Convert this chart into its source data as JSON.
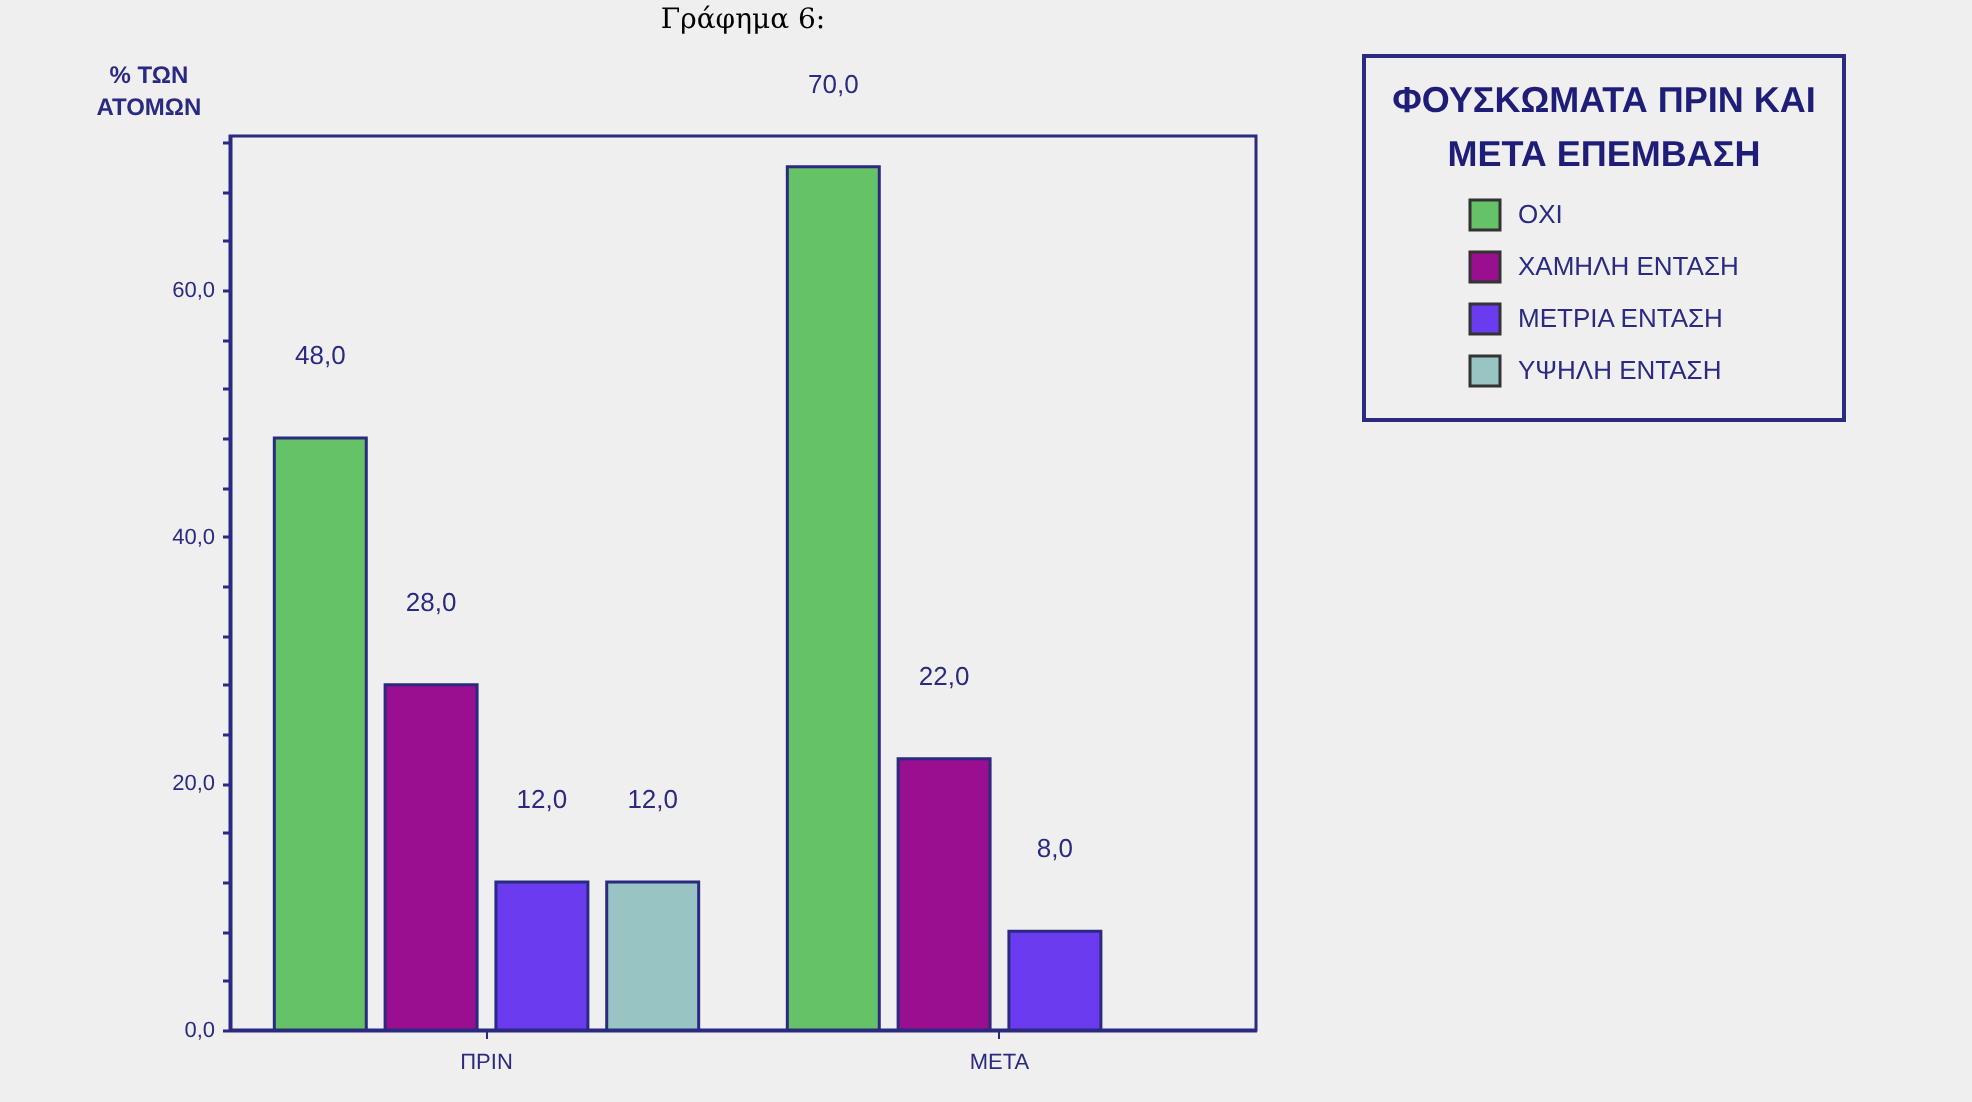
{
  "chart_data": {
    "type": "bar",
    "title": "Γράφημα 6:",
    "ylabel": "% ΤΩΝ ΑΤΟΜΩΝ",
    "legend_title": "ΦΟΥΣΚΩΜΑΤΑ ΠΡΙΝ ΚΑΙ ΜΕΤΑ ΕΠΕΜΒΑΣΗ",
    "categories": [
      "ΠΡΙΝ",
      "ΜΕΤΑ"
    ],
    "series": [
      {
        "name": "ΟΧΙ",
        "color": "#66c266",
        "values": [
          48,
          70
        ],
        "value_labels": [
          "48,0",
          "70,0"
        ]
      },
      {
        "name": "ΧΑΜΗΛΗ ΕΝΤΑΣΗ",
        "color": "#990f8f",
        "values": [
          28,
          22
        ],
        "value_labels": [
          "28,0",
          "22,0"
        ]
      },
      {
        "name": "ΜΕΤΡΙΑ ΕΝΤΑΣΗ",
        "color": "#6a3bef",
        "values": [
          12,
          8
        ],
        "value_labels": [
          "12,0",
          "8,0"
        ]
      },
      {
        "name": "ΥΨΗΛΗ ΕΝΤΑΣΗ",
        "color": "#99c4c4",
        "values": [
          12,
          null
        ],
        "value_labels": [
          "12,0",
          null
        ]
      }
    ],
    "ylim": [
      0,
      72.5
    ],
    "yticks": [
      {
        "value": 0,
        "label": "0,0"
      },
      {
        "value": 4,
        "label": null
      },
      {
        "value": 8,
        "label": null
      },
      {
        "value": 12,
        "label": null
      },
      {
        "value": 16,
        "label": null
      },
      {
        "value": 20,
        "label": "20,0"
      },
      {
        "value": 24,
        "label": null
      },
      {
        "value": 28,
        "label": null
      },
      {
        "value": 32,
        "label": null
      },
      {
        "value": 36,
        "label": null
      },
      {
        "value": 40,
        "label": "40,0"
      },
      {
        "value": 44,
        "label": null
      },
      {
        "value": 48,
        "label": null
      },
      {
        "value": 52,
        "label": null
      },
      {
        "value": 56,
        "label": null
      },
      {
        "value": 60,
        "label": "60,0"
      },
      {
        "value": 64,
        "label": null
      },
      {
        "value": 68,
        "label": null
      },
      {
        "value": 72,
        "label": null
      }
    ],
    "legend": "top right",
    "grid": false
  }
}
